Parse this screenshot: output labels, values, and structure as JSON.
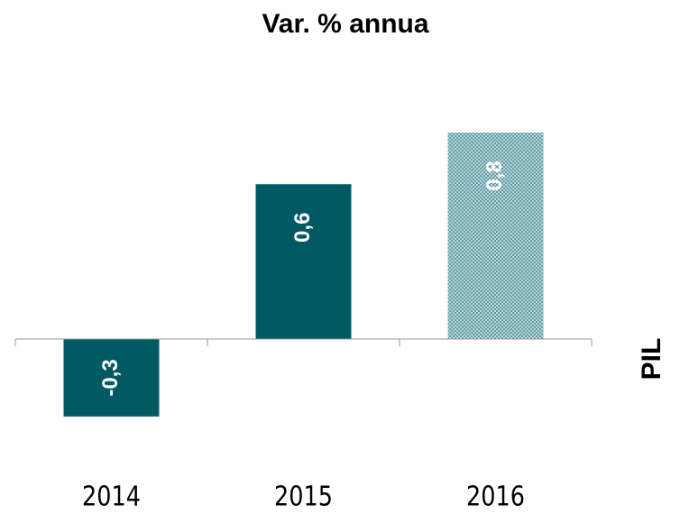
{
  "chart_data": {
    "type": "bar",
    "title": "Var. % annua",
    "side_label": "PIL",
    "categories": [
      "2014",
      "2015",
      "2016"
    ],
    "values": [
      -0.3,
      0.6,
      0.8
    ],
    "value_labels": [
      "-0,3",
      "0,6",
      "0,8"
    ],
    "colors": [
      "#005a64",
      "#005a64",
      "#005a64"
    ],
    "patterns": [
      "solid",
      "solid",
      "dotted"
    ]
  }
}
